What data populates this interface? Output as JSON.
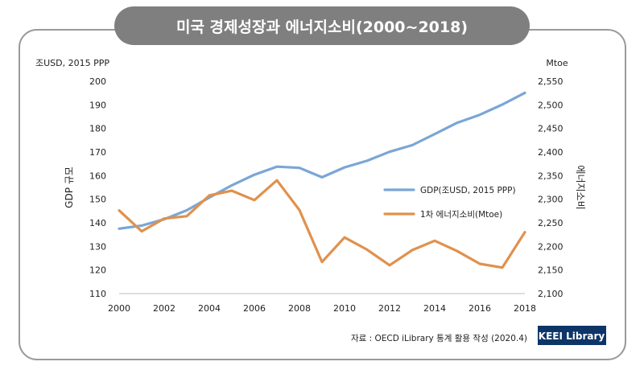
{
  "title": "미국 경제성장과 에너지소비(2000~2018)",
  "source": "자료 : OECD iLibrary 통계 활용 작성 (2020.4)",
  "badge": "KEEI Library",
  "colors": {
    "gdp": "#7aa6d6",
    "energy": "#e0914d",
    "frame": "#9a9a9a",
    "banner": "#7f7f7f"
  },
  "chart_data": {
    "type": "line",
    "title": "미국 경제성장과 에너지소비(2000~2018)",
    "x": [
      2000,
      2001,
      2002,
      2003,
      2004,
      2005,
      2006,
      2007,
      2008,
      2009,
      2010,
      2011,
      2012,
      2013,
      2014,
      2015,
      2016,
      2017,
      2018
    ],
    "xticks": [
      2000,
      2002,
      2004,
      2006,
      2008,
      2010,
      2012,
      2014,
      2016,
      2018
    ],
    "xtick_labels": [
      "2000",
      "2002",
      "2004",
      "2006",
      "2008",
      "2010",
      "2012",
      "2014",
      "2016",
      "2018"
    ],
    "left_axis": {
      "label": "GDP 규모",
      "unit_label": "조USD, 2015 PPP",
      "ylim": [
        110,
        200
      ],
      "ticks": [
        110,
        120,
        130,
        140,
        150,
        160,
        170,
        180,
        190,
        200
      ],
      "tick_labels": [
        "110",
        "120",
        "130",
        "140",
        "150",
        "160",
        "170",
        "180",
        "190",
        "200"
      ]
    },
    "right_axis": {
      "label": "에너지소비",
      "unit_label": "Mtoe",
      "ylim": [
        2100,
        2550
      ],
      "ticks": [
        2100,
        2150,
        2200,
        2250,
        2300,
        2350,
        2400,
        2450,
        2500,
        2550
      ],
      "tick_labels": [
        "2,100",
        "2,150",
        "2,200",
        "2,250",
        "2,300",
        "2,350",
        "2,400",
        "2,450",
        "2,500",
        "2,550"
      ]
    },
    "series": [
      {
        "name": "GDP(조USD, 2015 PPP)",
        "axis": "left",
        "values": [
          137.5,
          138.8,
          141.5,
          145.3,
          150.7,
          155.9,
          160.4,
          163.8,
          163.3,
          159.3,
          163.5,
          166.3,
          170.1,
          172.9,
          177.6,
          182.4,
          185.8,
          190.1,
          195.1
        ]
      },
      {
        "name": "1차 에너지소비(Mtoe)",
        "axis": "right",
        "values": [
          2276,
          2232,
          2259,
          2264,
          2308,
          2318,
          2298,
          2340,
          2277,
          2167,
          2219,
          2193,
          2160,
          2192,
          2212,
          2190,
          2163,
          2155,
          2230
        ]
      }
    ]
  }
}
